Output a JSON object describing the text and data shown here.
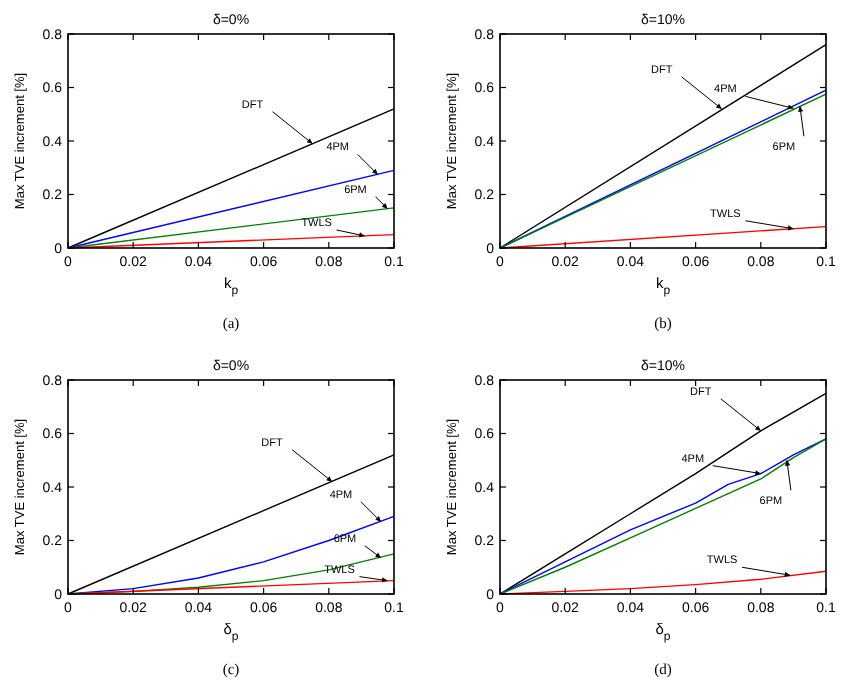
{
  "chart_data": [
    {
      "type": "line",
      "title": "δ=0%",
      "xlabel": "k$_{p}$",
      "ylabel": "Max TVE increment [%]",
      "xlim": [
        0,
        0.1
      ],
      "ylim": [
        0,
        0.8
      ],
      "xticks": [
        0,
        0.02,
        0.04,
        0.06,
        0.08,
        0.1
      ],
      "yticks": [
        0,
        0.2,
        0.4,
        0.6,
        0.8
      ],
      "grid": false,
      "line_style": "solid",
      "series": [
        {
          "color": "#000000",
          "x": [
            0,
            0.1
          ],
          "values": [
            0,
            0.52
          ]
        },
        {
          "color": "#0000ff",
          "x": [
            0,
            0.1
          ],
          "values": [
            0,
            0.29
          ]
        },
        {
          "color": "#008000",
          "x": [
            0,
            0.1
          ],
          "values": [
            0,
            0.15
          ]
        },
        {
          "color": "#ff0000",
          "x": [
            0,
            0.1
          ],
          "values": [
            0,
            0.05
          ]
        }
      ],
      "annotations": [
        {
          "text": "DFT",
          "x": 0.075,
          "y": 0.39
        },
        {
          "text": "4PM",
          "x": 0.095,
          "y": 0.275
        },
        {
          "text": "6PM",
          "x": 0.098,
          "y": 0.147
        },
        {
          "text": "TWLS",
          "x": 0.091,
          "y": 0.045
        },
        "(a)"
      ]
    },
    {
      "type": "line",
      "title": "δ=10%",
      "xlabel": "k$_{p}$",
      "ylabel": "Max TVE increment [%]",
      "xlim": [
        0,
        0.1
      ],
      "ylim": [
        0,
        0.8
      ],
      "xticks": [
        0,
        0.02,
        0.04,
        0.06,
        0.08,
        0.1
      ],
      "yticks": [
        0,
        0.2,
        0.4,
        0.6,
        0.8
      ],
      "grid": false,
      "line_style": "solid",
      "series": [
        {
          "color": "#000000",
          "x": [
            0,
            0.1
          ],
          "values": [
            0,
            0.76
          ]
        },
        {
          "color": "#0000ff",
          "x": [
            0,
            0.1
          ],
          "values": [
            0,
            0.59
          ]
        },
        {
          "color": "#008000",
          "x": [
            0,
            0.1
          ],
          "values": [
            0,
            0.575
          ]
        },
        {
          "color": "#ff0000",
          "x": [
            0,
            0.1
          ],
          "values": [
            0,
            0.08
          ]
        }
      ],
      "annotations": [
        {
          "text": "DFT",
          "x": 0.068,
          "y": 0.52
        },
        {
          "text": "4PM",
          "x": 0.09,
          "y": 0.522
        },
        {
          "text": "6PM",
          "x": 0.092,
          "y": 0.53
        },
        {
          "text": "TWLS",
          "x": 0.09,
          "y": 0.072
        },
        "(b)"
      ]
    },
    {
      "type": "line",
      "title": "δ=0%",
      "xlabel": "δ$_{p}$",
      "ylabel": "Max TVE increment [%]",
      "xlim": [
        0,
        0.1
      ],
      "ylim": [
        0,
        0.8
      ],
      "xticks": [
        0,
        0.02,
        0.04,
        0.06,
        0.08,
        0.1
      ],
      "yticks": [
        0,
        0.2,
        0.4,
        0.6,
        0.8
      ],
      "grid": false,
      "line_style": "solid",
      "series": [
        {
          "color": "#000000",
          "x": [
            0,
            0.1
          ],
          "values": [
            0,
            0.52
          ]
        },
        {
          "color": "#0000ff",
          "x": [
            0,
            0.02,
            0.04,
            0.06,
            0.08,
            0.1
          ],
          "values": [
            0,
            0.02,
            0.06,
            0.12,
            0.2,
            0.29
          ]
        },
        {
          "color": "#008000",
          "x": [
            0,
            0.02,
            0.04,
            0.06,
            0.08,
            0.1
          ],
          "values": [
            0,
            0.01,
            0.025,
            0.05,
            0.09,
            0.15
          ]
        },
        {
          "color": "#ff0000",
          "x": [
            0,
            0.1
          ],
          "values": [
            0,
            0.05
          ]
        }
      ],
      "annotations": [
        {
          "text": "DFT",
          "x": 0.081,
          "y": 0.42
        },
        {
          "text": "4PM",
          "x": 0.096,
          "y": 0.27
        },
        {
          "text": "6PM",
          "x": 0.096,
          "y": 0.135
        },
        {
          "text": "TWLS",
          "x": 0.098,
          "y": 0.05
        },
        "(c)"
      ]
    },
    {
      "type": "line",
      "title": "δ=10%",
      "xlabel": "δ$_{p}$",
      "ylabel": "Max TVE increment [%]",
      "xlim": [
        0,
        0.1
      ],
      "ylim": [
        0,
        0.8
      ],
      "xticks": [
        0,
        0.02,
        0.04,
        0.06,
        0.08,
        0.1
      ],
      "yticks": [
        0,
        0.2,
        0.4,
        0.6,
        0.8
      ],
      "grid": false,
      "line_style": "solid",
      "series": [
        {
          "color": "#000000",
          "x": [
            0,
            0.02,
            0.04,
            0.06,
            0.08,
            0.1
          ],
          "values": [
            0,
            0.15,
            0.3,
            0.45,
            0.61,
            0.75
          ]
        },
        {
          "color": "#0000ff",
          "x": [
            0,
            0.02,
            0.04,
            0.06,
            0.07,
            0.08,
            0.09,
            0.1
          ],
          "values": [
            0,
            0.12,
            0.24,
            0.34,
            0.41,
            0.45,
            0.52,
            0.58
          ]
        },
        {
          "color": "#008000",
          "x": [
            0,
            0.02,
            0.04,
            0.06,
            0.08,
            0.09,
            0.1
          ],
          "values": [
            0,
            0.1,
            0.21,
            0.32,
            0.43,
            0.51,
            0.58
          ]
        },
        {
          "color": "#ff0000",
          "x": [
            0,
            0.02,
            0.04,
            0.06,
            0.08,
            0.1
          ],
          "values": [
            0,
            0.01,
            0.02,
            0.035,
            0.055,
            0.085
          ]
        }
      ],
      "annotations": [
        {
          "text": "DFT",
          "x": 0.08,
          "y": 0.61
        },
        {
          "text": "4PM",
          "x": 0.08,
          "y": 0.45
        },
        {
          "text": "6PM",
          "x": 0.088,
          "y": 0.5
        },
        {
          "text": "TWLS",
          "x": 0.089,
          "y": 0.07
        },
        "(d)"
      ]
    }
  ]
}
